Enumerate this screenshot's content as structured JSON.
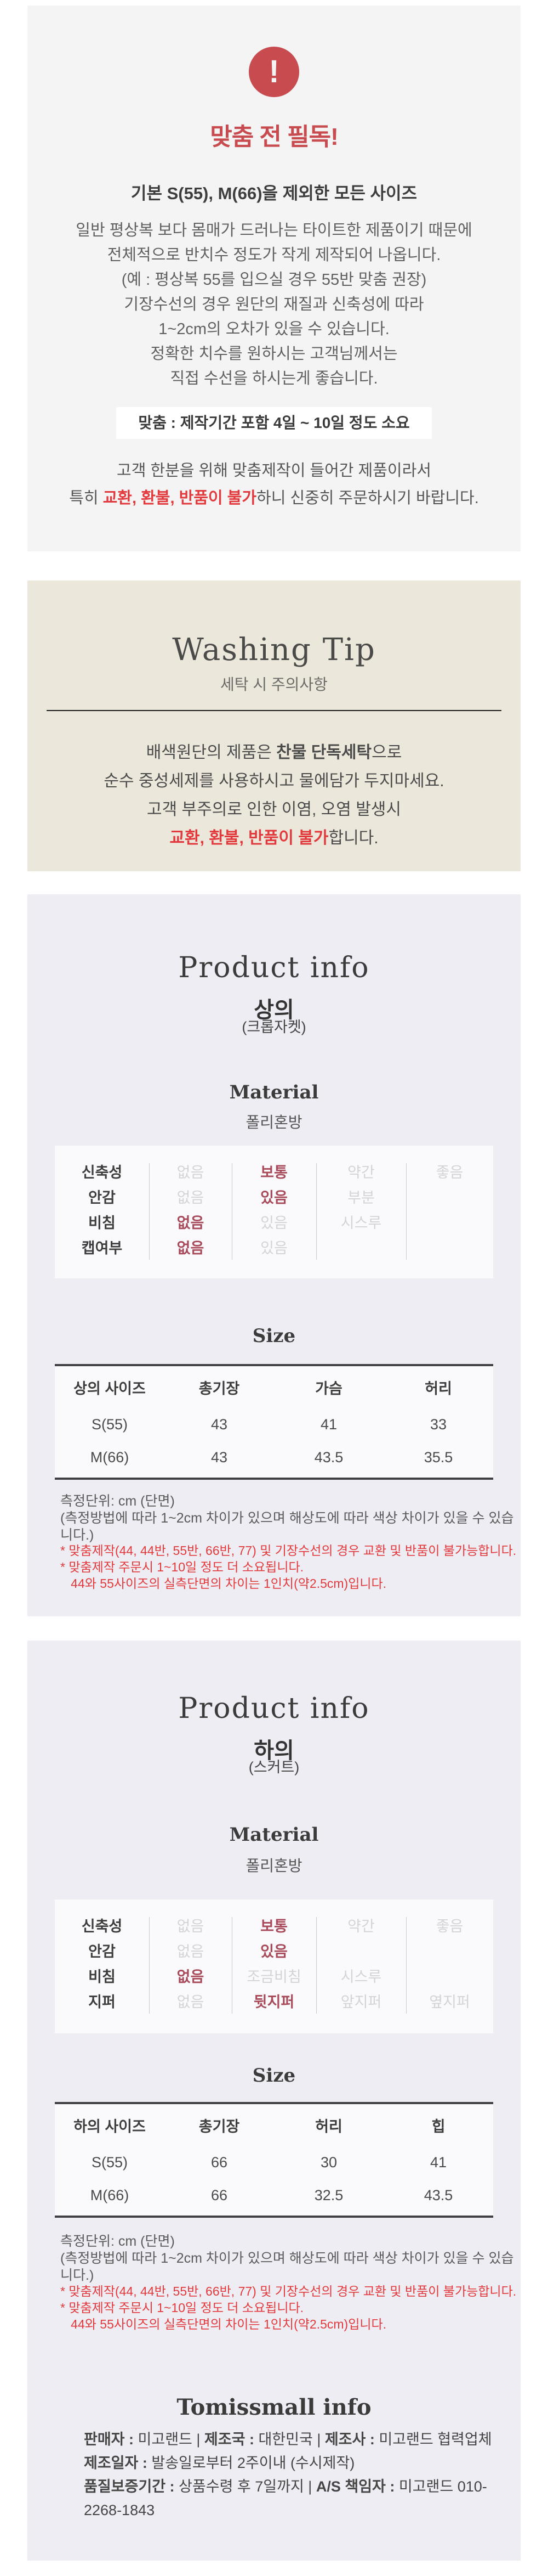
{
  "colors": {
    "accent_red": "#c84b4f",
    "bright_red": "#e23a3c",
    "selected_maroon": "#a84a5a",
    "notice_bg": "#f4f4f4",
    "washing_bg": "#ebe7da",
    "product_bg": "#ededf3"
  },
  "notice": {
    "icon": "exclamation",
    "icon_glyph": "!",
    "title": "맞춤 전 필독!",
    "subtitle": "기본 S(55), M(66)을 제외한 모든 사이즈",
    "paragraph": [
      "일반 평상복 보다 몸매가 드러나는 타이트한 제품이기 때문에",
      "전체적으로 반치수 정도가 작게 제작되어 나옵니다.",
      "(예 : 평상복 55를 입으실 경우 55반 맞춤 권장)",
      "기장수선의 경우 원단의 재질과 신축성에 따라",
      "1~2cm의 오차가 있을 수 있습니다.",
      "정확한 치수를 원하시는 고객님께서는",
      "직접 수선을 하시는게 좋습니다."
    ],
    "box": "맞춤 : 제작기간 포함 4일 ~ 10일 정도 소요",
    "closing_line1": [
      {
        "t": "고객 한분을 위해 맞춤제작이 들어간 제품이라서"
      }
    ],
    "closing_line2": [
      {
        "t": "특히 "
      },
      {
        "t": "교환, 환불, 반품이 불가",
        "b": true,
        "r": true
      },
      {
        "t": "하니 신중히 주문하시기 바랍니다."
      }
    ]
  },
  "washing": {
    "title": "Washing Tip",
    "subtitle": "세탁 시 주의사항",
    "lines": [
      [
        {
          "t": "배색원단의 제품은 "
        },
        {
          "t": "찬물 단독세탁",
          "b": true
        },
        {
          "t": "으로"
        }
      ],
      [
        {
          "t": "순수 중성세제를 사용하시고 물에담가 두지마세요."
        }
      ],
      [
        {
          "t": "고객 부주의로 인한 이염, 오염 발생시"
        }
      ],
      [
        {
          "t": "교환, 환불, 반품이 불가",
          "b": true,
          "r": true
        },
        {
          "t": "합니다."
        }
      ]
    ]
  },
  "product_top": {
    "section_title": "Product info",
    "name": "상의",
    "name_sub": "(크롭자켓)",
    "material_label": "Material",
    "material": "폴리혼방",
    "spec": [
      {
        "label": "신축성",
        "options": [
          {
            "t": "없음"
          },
          {
            "t": "보통",
            "sel": true
          },
          {
            "t": "약간"
          },
          {
            "t": "좋음"
          }
        ]
      },
      {
        "label": "안감",
        "options": [
          {
            "t": "없음"
          },
          {
            "t": "있음",
            "sel": true
          },
          {
            "t": "부분"
          },
          {
            "t": ""
          }
        ]
      },
      {
        "label": "비침",
        "options": [
          {
            "t": "없음",
            "sel": true
          },
          {
            "t": "있음"
          },
          {
            "t": "시스루"
          },
          {
            "t": ""
          }
        ]
      },
      {
        "label": "캡여부",
        "options": [
          {
            "t": "없음",
            "sel": true
          },
          {
            "t": "있음"
          },
          {
            "t": ""
          },
          {
            "t": ""
          }
        ]
      }
    ],
    "size_label": "Size",
    "size": {
      "headers": [
        "상의 사이즈",
        "총기장",
        "가슴",
        "허리"
      ],
      "rows": [
        [
          "S(55)",
          "43",
          "41",
          "33"
        ],
        [
          "M(66)",
          "43",
          "43.5",
          "35.5"
        ]
      ]
    },
    "notes": [
      "측정단위: cm (단면)",
      "(측정방법에 따라 1~2cm 차이가 있으며 해상도에 따라 색상 차이가 있을 수 있습니다.)"
    ],
    "red_notes": [
      "* 맞춤제작(44, 44반, 55반, 66반, 77) 및 기장수선의 경우 교환 및 반품이 불가능합니다.",
      "* 맞춤제작 주문시 1~10일 정도 더 소요됩니다.",
      "   44와 55사이즈의 실측단면의 차이는 1인치(약2.5cm)입니다."
    ]
  },
  "product_bottom": {
    "section_title": "Product info",
    "name": "하의",
    "name_sub": "(스커트)",
    "material_label": "Material",
    "material": "폴리혼방",
    "spec": [
      {
        "label": "신축성",
        "options": [
          {
            "t": "없음"
          },
          {
            "t": "보통",
            "sel": true
          },
          {
            "t": "약간"
          },
          {
            "t": "좋음"
          }
        ]
      },
      {
        "label": "안감",
        "options": [
          {
            "t": "없음"
          },
          {
            "t": "있음",
            "sel": true
          },
          {
            "t": ""
          },
          {
            "t": ""
          }
        ]
      },
      {
        "label": "비침",
        "options": [
          {
            "t": "없음",
            "sel": true
          },
          {
            "t": "조금비침"
          },
          {
            "t": "시스루"
          },
          {
            "t": ""
          }
        ]
      },
      {
        "label": "지퍼",
        "options": [
          {
            "t": "없음"
          },
          {
            "t": "뒷지퍼",
            "sel": true
          },
          {
            "t": "앞지퍼"
          },
          {
            "t": "옆지퍼"
          }
        ]
      }
    ],
    "size_label": "Size",
    "size": {
      "headers": [
        "하의 사이즈",
        "총기장",
        "허리",
        "힙"
      ],
      "rows": [
        [
          "S(55)",
          "66",
          "30",
          "41"
        ],
        [
          "M(66)",
          "66",
          "32.5",
          "43.5"
        ]
      ]
    },
    "notes": [
      "측정단위: cm (단면)",
      "(측정방법에 따라 1~2cm 차이가 있으며 해상도에 따라 색상 차이가 있을 수 있습니다.)"
    ],
    "red_notes": [
      "* 맞춤제작(44, 44반, 55반, 66반, 77) 및 기장수선의 경우 교환 및 반품이 불가능합니다.",
      "* 맞춤제작 주문시 1~10일 정도 더 소요됩니다.",
      "   44와 55사이즈의 실측단면의 차이는 1인치(약2.5cm)입니다."
    ]
  },
  "footer": {
    "title": "Tomissmall info",
    "lines": [
      [
        {
          "t": "판매자 : ",
          "b": true
        },
        {
          "t": "미고랜드"
        },
        {
          "t": "  |  "
        },
        {
          "t": "제조국 : ",
          "b": true
        },
        {
          "t": "대한민국"
        },
        {
          "t": "  |  "
        },
        {
          "t": "제조사 : ",
          "b": true
        },
        {
          "t": "미고랜드 협력업체"
        }
      ],
      [
        {
          "t": "제조일자 : ",
          "b": true
        },
        {
          "t": "발송일로부터 2주이내 (수시제작)"
        }
      ],
      [
        {
          "t": "품질보증기간 : ",
          "b": true
        },
        {
          "t": "상품수령 후 7일까지"
        },
        {
          "t": "  |  "
        },
        {
          "t": "A/S 책임자 : ",
          "b": true
        },
        {
          "t": "미고랜드 010-2268-1843"
        }
      ]
    ]
  }
}
